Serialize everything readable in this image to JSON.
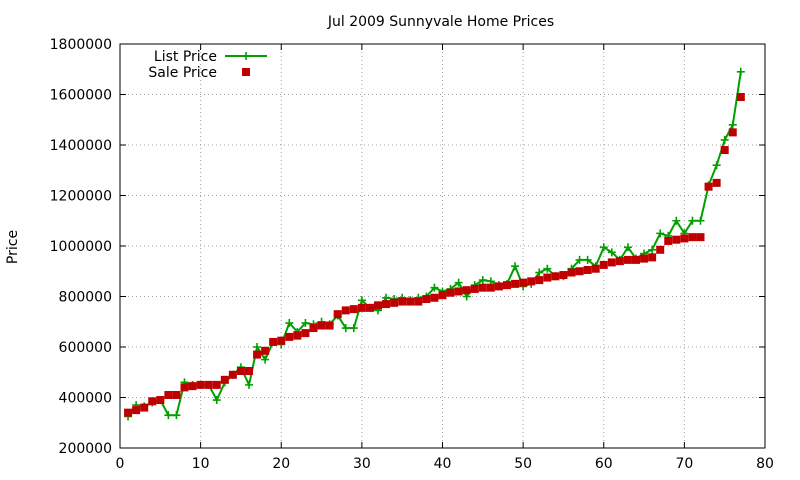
{
  "chart_data": {
    "type": "line",
    "title": "Jul 2009 Sunnyvale Home Prices",
    "xlabel": "",
    "ylabel": "Price",
    "xlim": [
      0,
      80
    ],
    "ylim": [
      200000,
      1800000
    ],
    "x_ticks": [
      0,
      10,
      20,
      30,
      40,
      50,
      60,
      70,
      80
    ],
    "y_ticks": [
      200000,
      400000,
      600000,
      800000,
      1000000,
      1200000,
      1400000,
      1600000,
      1800000
    ],
    "grid": true,
    "legend_position": "top-left",
    "series": [
      {
        "name": "List Price",
        "style": "linespoints",
        "marker": "plus",
        "color": "#00a000",
        "x": [
          1,
          2,
          3,
          4,
          5,
          6,
          7,
          8,
          9,
          10,
          11,
          12,
          13,
          14,
          15,
          16,
          17,
          18,
          19,
          20,
          21,
          22,
          23,
          24,
          25,
          26,
          27,
          28,
          29,
          30,
          31,
          32,
          33,
          34,
          35,
          36,
          37,
          38,
          39,
          40,
          41,
          42,
          43,
          44,
          45,
          46,
          47,
          48,
          49,
          50,
          51,
          52,
          53,
          54,
          55,
          56,
          57,
          58,
          59,
          60,
          61,
          62,
          63,
          64,
          65,
          66,
          67,
          68,
          69,
          70,
          71,
          72,
          73,
          74,
          75,
          76,
          77
        ],
        "values": [
          325000,
          370000,
          365000,
          380000,
          390000,
          330000,
          330000,
          460000,
          450000,
          450000,
          450000,
          390000,
          460000,
          490000,
          520000,
          450000,
          600000,
          550000,
          620000,
          610000,
          695000,
          660000,
          695000,
          690000,
          700000,
          690000,
          725000,
          675000,
          675000,
          785000,
          755000,
          745000,
          795000,
          790000,
          795000,
          785000,
          795000,
          800000,
          835000,
          820000,
          830000,
          855000,
          800000,
          845000,
          865000,
          860000,
          845000,
          850000,
          920000,
          840000,
          850000,
          895000,
          910000,
          880000,
          880000,
          910000,
          945000,
          945000,
          920000,
          995000,
          975000,
          945000,
          995000,
          950000,
          970000,
          985000,
          1050000,
          1040000,
          1100000,
          1050000,
          1100000,
          1100000,
          1240000,
          1320000,
          1420000,
          1480000,
          1690000
        ]
      },
      {
        "name": "Sale Price",
        "style": "points",
        "marker": "square",
        "color": "#c00000",
        "x": [
          1,
          2,
          3,
          4,
          5,
          6,
          7,
          8,
          9,
          10,
          11,
          12,
          13,
          14,
          15,
          16,
          17,
          18,
          19,
          20,
          21,
          22,
          23,
          24,
          25,
          26,
          27,
          28,
          29,
          30,
          31,
          32,
          33,
          34,
          35,
          36,
          37,
          38,
          39,
          40,
          41,
          42,
          43,
          44,
          45,
          46,
          47,
          48,
          49,
          50,
          51,
          52,
          53,
          54,
          55,
          56,
          57,
          58,
          59,
          60,
          61,
          62,
          63,
          64,
          65,
          66,
          67,
          68,
          69,
          70,
          71,
          72,
          73,
          74,
          75,
          76,
          77
        ],
        "values": [
          340000,
          350000,
          360000,
          385000,
          390000,
          410000,
          410000,
          440000,
          445000,
          450000,
          450000,
          450000,
          470000,
          490000,
          505000,
          505000,
          570000,
          585000,
          620000,
          625000,
          640000,
          645000,
          655000,
          675000,
          685000,
          685000,
          730000,
          745000,
          750000,
          755000,
          755000,
          765000,
          770000,
          775000,
          780000,
          780000,
          780000,
          790000,
          795000,
          805000,
          815000,
          820000,
          825000,
          830000,
          835000,
          835000,
          840000,
          845000,
          850000,
          855000,
          860000,
          865000,
          875000,
          880000,
          885000,
          895000,
          900000,
          905000,
          910000,
          925000,
          935000,
          940000,
          945000,
          945000,
          950000,
          955000,
          985000,
          1020000,
          1025000,
          1030000,
          1035000,
          1035000,
          1235000,
          1250000,
          1380000,
          1450000,
          1590000
        ]
      }
    ]
  }
}
